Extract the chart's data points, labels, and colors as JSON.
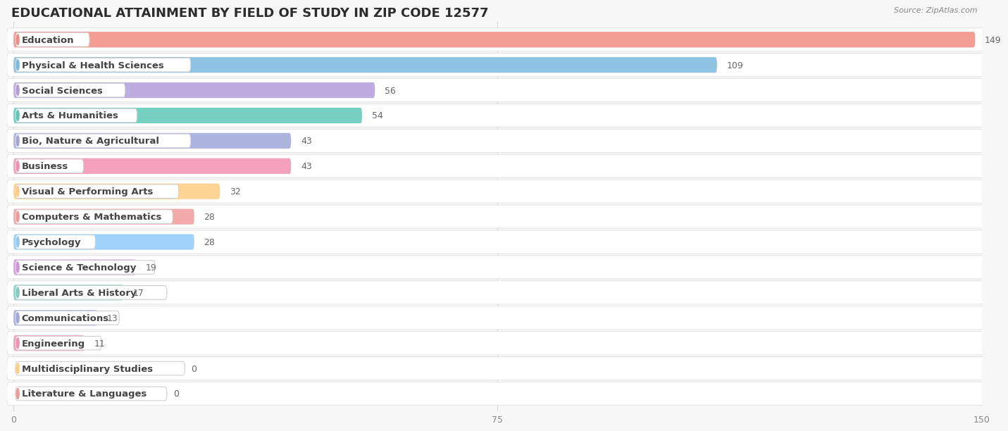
{
  "title": "EDUCATIONAL ATTAINMENT BY FIELD OF STUDY IN ZIP CODE 12577",
  "source": "Source: ZipAtlas.com",
  "categories": [
    "Education",
    "Physical & Health Sciences",
    "Social Sciences",
    "Arts & Humanities",
    "Bio, Nature & Agricultural",
    "Business",
    "Visual & Performing Arts",
    "Computers & Mathematics",
    "Psychology",
    "Science & Technology",
    "Liberal Arts & History",
    "Communications",
    "Engineering",
    "Multidisciplinary Studies",
    "Literature & Languages"
  ],
  "values": [
    149,
    109,
    56,
    54,
    43,
    43,
    32,
    28,
    28,
    19,
    17,
    13,
    11,
    0,
    0
  ],
  "bar_colors": [
    "#f28b82",
    "#7cb9e0",
    "#b39ddb",
    "#5ec8b8",
    "#9fa8da",
    "#f48fb1",
    "#ffcc80",
    "#ef9a9a",
    "#90caf9",
    "#ce93d8",
    "#80cbc4",
    "#9fa8da",
    "#f48fb1",
    "#ffcc80",
    "#ef9a9a"
  ],
  "xlim": [
    0,
    150
  ],
  "xticks": [
    0,
    75,
    150
  ],
  "background_color": "#f7f7f7",
  "row_bg_color": "#ffffff",
  "title_fontsize": 13,
  "label_fontsize": 9.5,
  "value_fontsize": 9
}
